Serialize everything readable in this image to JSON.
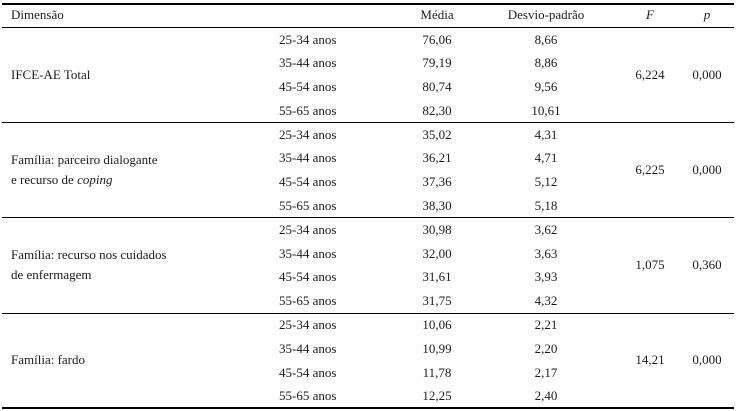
{
  "table": {
    "headers": {
      "dimension": "Dimensão",
      "age": "",
      "media": "Média",
      "sd": "Desvio-padrão",
      "f": "F",
      "p": "p"
    },
    "groups": [
      {
        "dimension": {
          "l1": "IFCE-AE Total",
          "l2": "",
          "l2i": ""
        },
        "rows": [
          {
            "age": "25-34 anos",
            "media": "76,06",
            "sd": "8,66"
          },
          {
            "age": "35-44 anos",
            "media": "79,19",
            "sd": "8,86"
          },
          {
            "age": "45-54 anos",
            "media": "80,74",
            "sd": "9,56"
          },
          {
            "age": "55-65 anos",
            "media": "82,30",
            "sd": "10,61"
          }
        ],
        "f": "6,224",
        "p": "0,000"
      },
      {
        "dimension": {
          "l1": "Família: parceiro dialogante",
          "l2": "e recurso de ",
          "l2i": "coping"
        },
        "rows": [
          {
            "age": "25-34 anos",
            "media": "35,02",
            "sd": "4,31"
          },
          {
            "age": "35-44 anos",
            "media": "36,21",
            "sd": "4,71"
          },
          {
            "age": "45-54 anos",
            "media": "37,36",
            "sd": "5,12"
          },
          {
            "age": "55-65 anos",
            "media": "38,30",
            "sd": "5,18"
          }
        ],
        "f": "6,225",
        "p": "0,000"
      },
      {
        "dimension": {
          "l1": "Família: recurso nos cuidados",
          "l2": "de enfermagem",
          "l2i": ""
        },
        "rows": [
          {
            "age": "25-34 anos",
            "media": "30,98",
            "sd": "3,62"
          },
          {
            "age": "35-44 anos",
            "media": "32,00",
            "sd": "3,63"
          },
          {
            "age": "45-54 anos",
            "media": "31,61",
            "sd": "3,93"
          },
          {
            "age": "55-65 anos",
            "media": "31,75",
            "sd": "4,32"
          }
        ],
        "f": "1,075",
        "p": "0,360"
      },
      {
        "dimension": {
          "l1": "Família: fardo",
          "l2": "",
          "l2i": ""
        },
        "rows": [
          {
            "age": "25-34 anos",
            "media": "10,06",
            "sd": "2,21"
          },
          {
            "age": "35-44 anos",
            "media": "10,99",
            "sd": "2,20"
          },
          {
            "age": "45-54 anos",
            "media": "11,78",
            "sd": "2,17"
          },
          {
            "age": "55-65 anos",
            "media": "12,25",
            "sd": "2,40"
          }
        ],
        "f": "14,21",
        "p": "0,000"
      }
    ]
  }
}
